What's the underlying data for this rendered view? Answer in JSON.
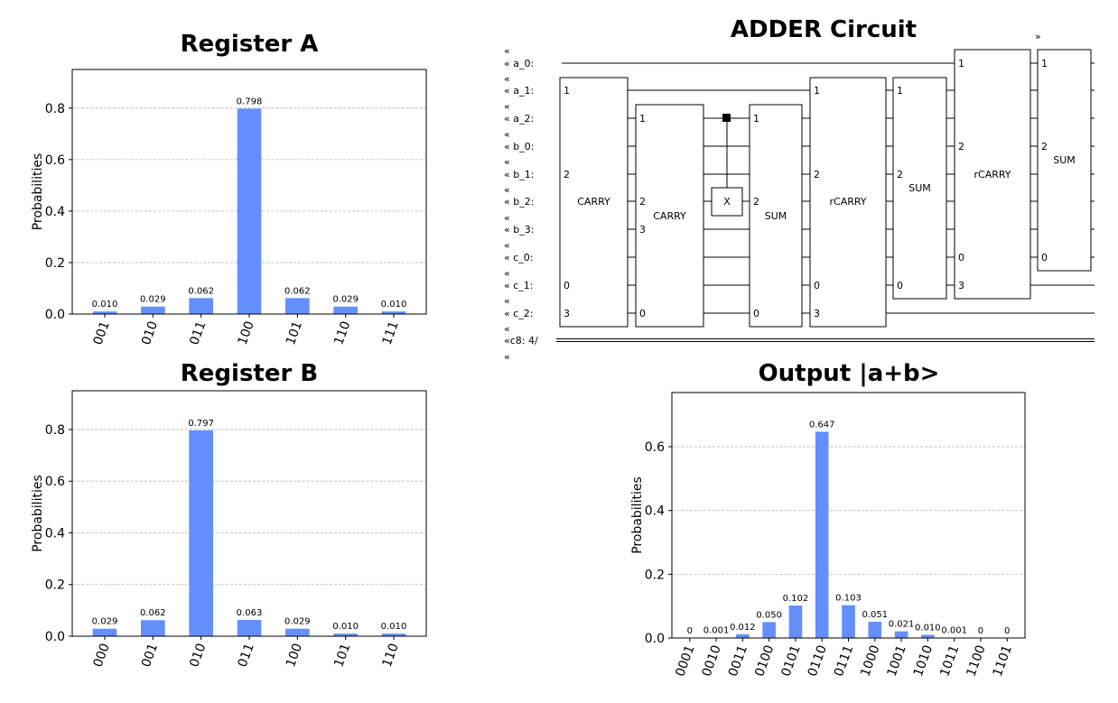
{
  "charts_meta": {
    "bar_color": "#648fff",
    "grid_color": "#b5b5b5"
  },
  "chart_data": [
    {
      "type": "bar",
      "title": "Register A",
      "ylabel": "Probabilities",
      "categories": [
        "001",
        "010",
        "011",
        "100",
        "101",
        "110",
        "111"
      ],
      "values": [
        0.01,
        0.029,
        0.062,
        0.798,
        0.062,
        0.029,
        0.01
      ],
      "labels": [
        "0.010",
        "0.029",
        "0.062",
        "0.798",
        "0.062",
        "0.029",
        "0.010"
      ],
      "ylim": [
        0,
        0.95
      ],
      "yticks": [
        0.0,
        0.2,
        0.4,
        0.6,
        0.8
      ],
      "ytick_labels": [
        "0.0",
        "0.2",
        "0.4",
        "0.6",
        "0.8"
      ],
      "grid": true
    },
    {
      "type": "bar",
      "title": "Register B",
      "ylabel": "Probabilities",
      "categories": [
        "000",
        "001",
        "010",
        "011",
        "100",
        "101",
        "110"
      ],
      "values": [
        0.029,
        0.062,
        0.797,
        0.063,
        0.029,
        0.01,
        0.01
      ],
      "labels": [
        "0.029",
        "0.062",
        "0.797",
        "0.063",
        "0.029",
        "0.010",
        "0.010"
      ],
      "ylim": [
        0,
        0.95
      ],
      "yticks": [
        0.0,
        0.2,
        0.4,
        0.6,
        0.8
      ],
      "ytick_labels": [
        "0.0",
        "0.2",
        "0.4",
        "0.6",
        "0.8"
      ],
      "grid": true
    },
    {
      "type": "bar",
      "title": "Output |a+b>",
      "ylabel": "Probabilities",
      "categories": [
        "0001",
        "0010",
        "0011",
        "0100",
        "0101",
        "0110",
        "0111",
        "1000",
        "1001",
        "1010",
        "1011",
        "1100",
        "1101"
      ],
      "values": [
        0,
        0.001,
        0.012,
        0.05,
        0.102,
        0.647,
        0.103,
        0.051,
        0.021,
        0.01,
        0.001,
        0,
        0
      ],
      "labels": [
        "0",
        "0.001",
        "0.012",
        "0.050",
        "0.102",
        "0.647",
        "0.103",
        "0.051",
        "0.021",
        "0.010",
        "0.001",
        "0",
        "0"
      ],
      "ylim": [
        0,
        0.77
      ],
      "yticks": [
        0.0,
        0.2,
        0.4,
        0.6
      ],
      "ytick_labels": [
        "0.0",
        "0.2",
        "0.4",
        "0.6"
      ],
      "grid": true
    }
  ],
  "circuit": {
    "title": "ADDER Circuit",
    "wrap_symbol_left": "«",
    "wrap_symbol_right": "»",
    "wires": [
      "« a_0:",
      "« a_1:",
      "« a_2:",
      "« b_0:",
      "« b_1:",
      "« b_2:",
      "« b_3:",
      "« c_0:",
      "« c_1:",
      "« c_2:"
    ],
    "classical_wire": "«c8: 4/",
    "gates": [
      {
        "name": "CARRY",
        "pins": [
          "1",
          "2",
          "0",
          "3"
        ]
      },
      {
        "name": "CARRY",
        "pins": [
          "1",
          "2",
          "3",
          "0"
        ]
      },
      {
        "name": "X",
        "pins": []
      },
      {
        "name": "SUM",
        "pins": [
          "1",
          "2",
          "0"
        ]
      },
      {
        "name": "rCARRY",
        "pins": [
          "1",
          "2",
          "0",
          "3"
        ]
      },
      {
        "name": "SUM",
        "pins": [
          "1",
          "2",
          "0"
        ]
      },
      {
        "name": "rCARRY",
        "pins": [
          "1",
          "2",
          "0",
          "3"
        ]
      },
      {
        "name": "SUM",
        "pins": [
          "1",
          "2",
          "0"
        ]
      }
    ]
  }
}
